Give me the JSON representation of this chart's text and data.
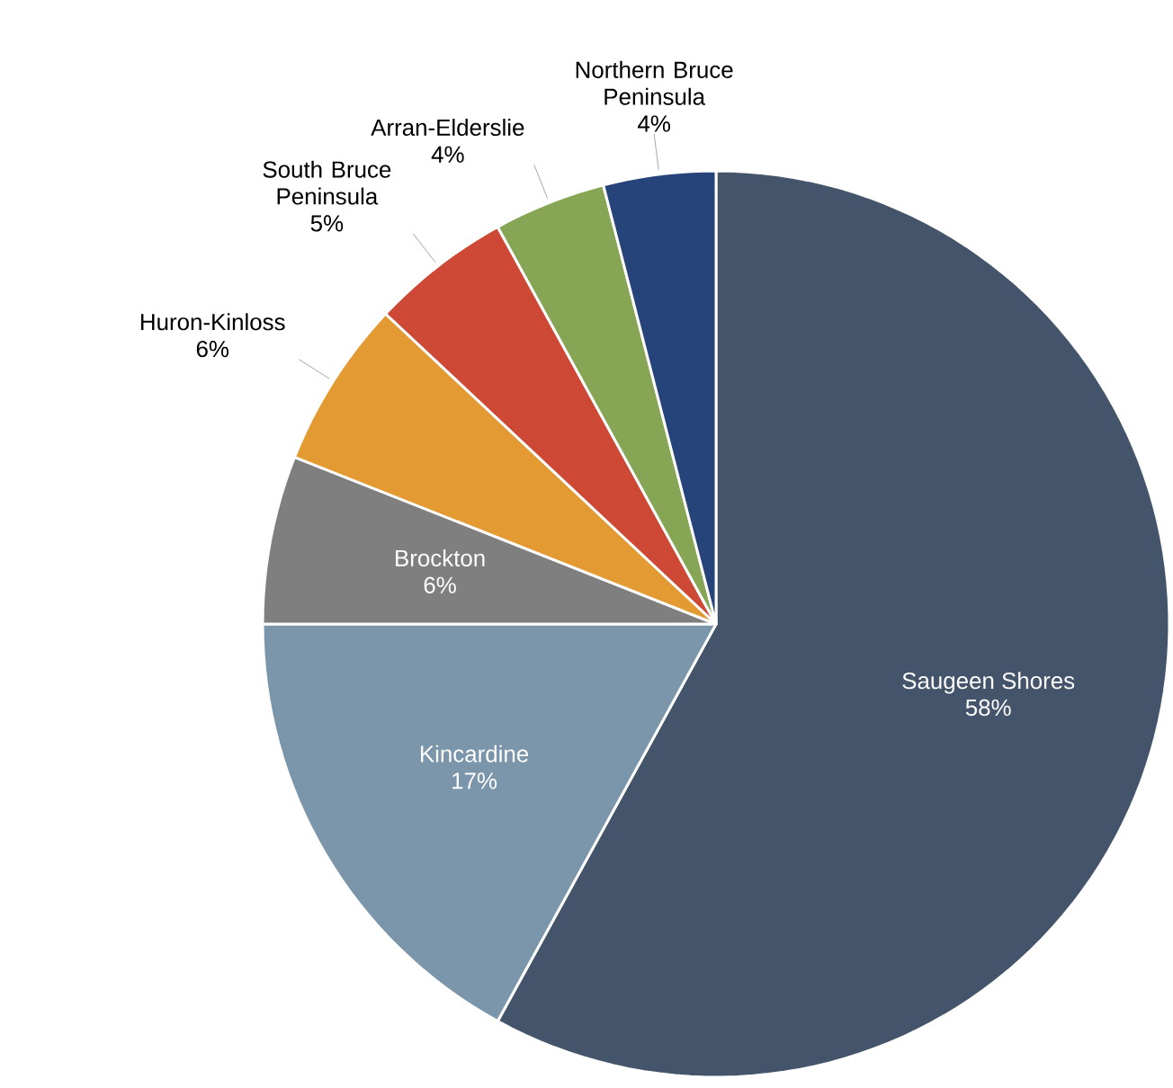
{
  "chart_data": {
    "type": "pie",
    "categories": [
      "Saugeen Shores",
      "Kincardine",
      "Brockton",
      "Huron-Kinloss",
      "South Bruce Peninsula",
      "Arran-Elderslie",
      "Northern Bruce Peninsula"
    ],
    "values": [
      58,
      17,
      6,
      6,
      5,
      4,
      4
    ],
    "value_labels": [
      "58%",
      "17%",
      "6%",
      "6%",
      "5%",
      "4%",
      "4%"
    ],
    "colors": [
      "#44546a",
      "#7b96aa",
      "#7f7f7f",
      "#e49a33",
      "#cd4936",
      "#86a656",
      "#264479"
    ]
  }
}
